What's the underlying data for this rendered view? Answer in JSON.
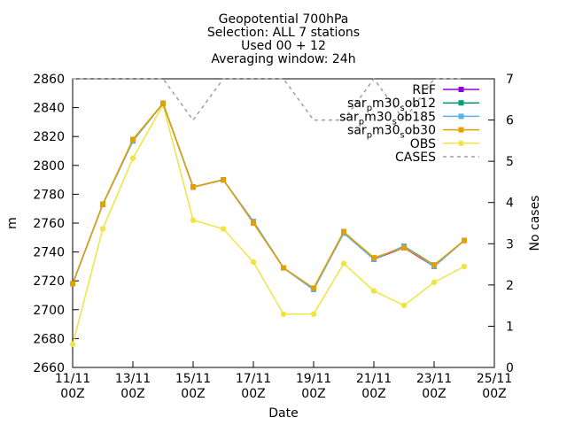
{
  "chart_data": {
    "type": "line",
    "title_lines": [
      "Geopotential 700hPa",
      "Selection: ALL      7 stations",
      "Used 00 + 12",
      "Averaging window: 24h"
    ],
    "xlabel": "Date",
    "ylabel": "m",
    "y2label": "No cases",
    "xlim": [
      "2023-11-11T00:00",
      "2023-11-25T00:00"
    ],
    "ylim": [
      2660,
      2860
    ],
    "y2lim": [
      0,
      7
    ],
    "yticks": [
      2660,
      2680,
      2700,
      2720,
      2740,
      2760,
      2780,
      2800,
      2820,
      2840,
      2860
    ],
    "y2ticks": [
      0,
      1,
      2,
      3,
      4,
      5,
      6,
      7
    ],
    "xticks": [
      {
        "x": "2023-11-11T00:00",
        "l1": "11/11",
        "l2": "00Z"
      },
      {
        "x": "2023-11-13T00:00",
        "l1": "13/11",
        "l2": "00Z"
      },
      {
        "x": "2023-11-15T00:00",
        "l1": "15/11",
        "l2": "00Z"
      },
      {
        "x": "2023-11-17T00:00",
        "l1": "17/11",
        "l2": "00Z"
      },
      {
        "x": "2023-11-19T00:00",
        "l1": "19/11",
        "l2": "00Z"
      },
      {
        "x": "2023-11-21T00:00",
        "l1": "21/11",
        "l2": "00Z"
      },
      {
        "x": "2023-11-23T00:00",
        "l1": "23/11",
        "l2": "00Z"
      },
      {
        "x": "2023-11-25T00:00",
        "l1": "25/11",
        "l2": "00Z"
      }
    ],
    "x": [
      "2023-11-11T00:00",
      "2023-11-12T00:00",
      "2023-11-13T00:00",
      "2023-11-14T00:00",
      "2023-11-15T00:00",
      "2023-11-16T00:00",
      "2023-11-17T00:00",
      "2023-11-18T00:00",
      "2023-11-19T00:00",
      "2023-11-20T00:00",
      "2023-11-21T00:00",
      "2023-11-22T00:00",
      "2023-11-23T00:00",
      "2023-11-24T00:00"
    ],
    "grid": false,
    "legend_position": "top-right",
    "series": [
      {
        "name": "REF",
        "color": "#9400d3",
        "marker": "square",
        "axis": "y1",
        "values": [
          2718,
          2773,
          2817,
          2843,
          2785,
          2790,
          2761,
          2729,
          2714,
          2754,
          2735,
          2743,
          2730,
          2748
        ]
      },
      {
        "name": "sar_pm30_sob12",
        "legend_parts": [
          "sar",
          "p",
          "m30",
          "s",
          "ob12"
        ],
        "color": "#009e73",
        "marker": "square",
        "axis": "y1",
        "values": [
          2718,
          2773,
          2817,
          2843,
          2785,
          2790,
          2761,
          2729,
          2714,
          2754,
          2735,
          2744,
          2731,
          2748
        ]
      },
      {
        "name": "sar_pm30_sob185",
        "legend_parts": [
          "sar",
          "p",
          "m30",
          "s",
          "ob185"
        ],
        "color": "#56b4e9",
        "marker": "square",
        "axis": "y1",
        "values": [
          2718,
          2773,
          2817,
          2843,
          2785,
          2790,
          2761,
          2729,
          2714,
          2753,
          2735,
          2744,
          2730,
          2748
        ]
      },
      {
        "name": "sar_pm30_sob30",
        "legend_parts": [
          "sar",
          "p",
          "m30",
          "s",
          "ob30"
        ],
        "color": "#e69f00",
        "marker": "square",
        "axis": "y1",
        "values": [
          2718,
          2773,
          2818,
          2843,
          2785,
          2790,
          2760,
          2729,
          2715,
          2754,
          2736,
          2743,
          2731,
          2748
        ]
      },
      {
        "name": "OBS",
        "color": "#f0e442",
        "marker": "circle",
        "axis": "y1",
        "values": [
          2676,
          2756,
          2805,
          2842,
          2762,
          2756,
          2733,
          2697,
          2697,
          2732,
          2713,
          2703,
          2719,
          2730
        ]
      },
      {
        "name": "CASES",
        "color": "#a0a0a0",
        "dash": true,
        "axis": "y2",
        "values": [
          7,
          7,
          7,
          7,
          6,
          7,
          7,
          7,
          6,
          6,
          7,
          6,
          7,
          7
        ]
      }
    ]
  }
}
